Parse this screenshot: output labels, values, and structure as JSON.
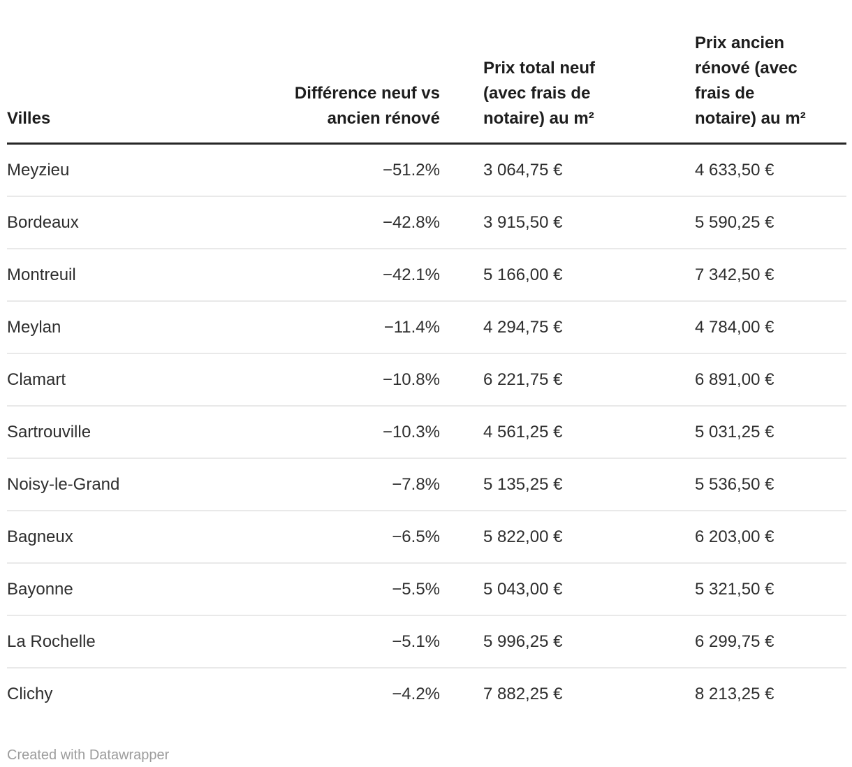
{
  "table": {
    "columns": [
      {
        "key": "ville",
        "label": "Villes",
        "align": "left"
      },
      {
        "key": "difference",
        "label": "Différence neuf vs\nancien rénové",
        "align": "right"
      },
      {
        "key": "prix_neuf",
        "label": "Prix total neuf\n(avec frais de\nnotaire) au m²",
        "align": "left"
      },
      {
        "key": "prix_ancien",
        "label": "Prix ancien\nrénové (avec\nfrais de\nnotaire) au m²",
        "align": "left"
      }
    ],
    "rows": [
      {
        "ville": "Meyzieu",
        "difference": "−51.2%",
        "prix_neuf": "3 064,75 €",
        "prix_ancien": "4 633,50 €"
      },
      {
        "ville": "Bordeaux",
        "difference": "−42.8%",
        "prix_neuf": "3 915,50 €",
        "prix_ancien": "5 590,25 €"
      },
      {
        "ville": "Montreuil",
        "difference": "−42.1%",
        "prix_neuf": "5 166,00 €",
        "prix_ancien": "7 342,50 €"
      },
      {
        "ville": "Meylan",
        "difference": "−11.4%",
        "prix_neuf": "4 294,75 €",
        "prix_ancien": "4 784,00 €"
      },
      {
        "ville": "Clamart",
        "difference": "−10.8%",
        "prix_neuf": "6 221,75 €",
        "prix_ancien": "6 891,00 €"
      },
      {
        "ville": "Sartrouville",
        "difference": "−10.3%",
        "prix_neuf": "4 561,25 €",
        "prix_ancien": "5 031,25 €"
      },
      {
        "ville": "Noisy-le-Grand",
        "difference": "−7.8%",
        "prix_neuf": "5 135,25 €",
        "prix_ancien": "5 536,50 €"
      },
      {
        "ville": "Bagneux",
        "difference": "−6.5%",
        "prix_neuf": "5 822,00 €",
        "prix_ancien": "6 203,00 €"
      },
      {
        "ville": "Bayonne",
        "difference": "−5.5%",
        "prix_neuf": "5 043,00 €",
        "prix_ancien": "5 321,50 €"
      },
      {
        "ville": "La Rochelle",
        "difference": "−5.1%",
        "prix_neuf": "5 996,25 €",
        "prix_ancien": "6 299,75 €"
      },
      {
        "ville": "Clichy",
        "difference": "−4.2%",
        "prix_neuf": "7 882,25 €",
        "prix_ancien": "8 213,25 €"
      }
    ]
  },
  "footer": {
    "credit": "Created with Datawrapper"
  },
  "colors": {
    "body_text": "#2e2e2e",
    "header_text": "#1d1d1d",
    "header_rule": "#262626",
    "row_divider": "#e9e9e9",
    "footer_text": "#9d9d9d",
    "background": "#ffffff"
  },
  "chart_data": {
    "type": "table",
    "title": "",
    "columns": [
      "Villes",
      "Différence neuf vs ancien rénové",
      "Prix total neuf (avec frais de notaire) au m²",
      "Prix ancien rénové (avec frais de notaire) au m²"
    ],
    "rows": [
      [
        "Meyzieu",
        -51.2,
        3064.75,
        4633.5
      ],
      [
        "Bordeaux",
        -42.8,
        3915.5,
        5590.25
      ],
      [
        "Montreuil",
        -42.1,
        5166.0,
        7342.5
      ],
      [
        "Meylan",
        -11.4,
        4294.75,
        4784.0
      ],
      [
        "Clamart",
        -10.8,
        6221.75,
        6891.0
      ],
      [
        "Sartrouville",
        -10.3,
        4561.25,
        5031.25
      ],
      [
        "Noisy-le-Grand",
        -7.8,
        5135.25,
        5536.5
      ],
      [
        "Bagneux",
        -6.5,
        5822.0,
        6203.0
      ],
      [
        "Bayonne",
        -5.5,
        5043.0,
        5321.5
      ],
      [
        "La Rochelle",
        -5.1,
        5996.25,
        6299.75
      ],
      [
        "Clichy",
        -4.2,
        7882.25,
        8213.25
      ]
    ],
    "units": {
      "difference": "%",
      "prices": "EUR per m²"
    },
    "legend_position": "none",
    "grid": "horizontal-row-dividers"
  }
}
